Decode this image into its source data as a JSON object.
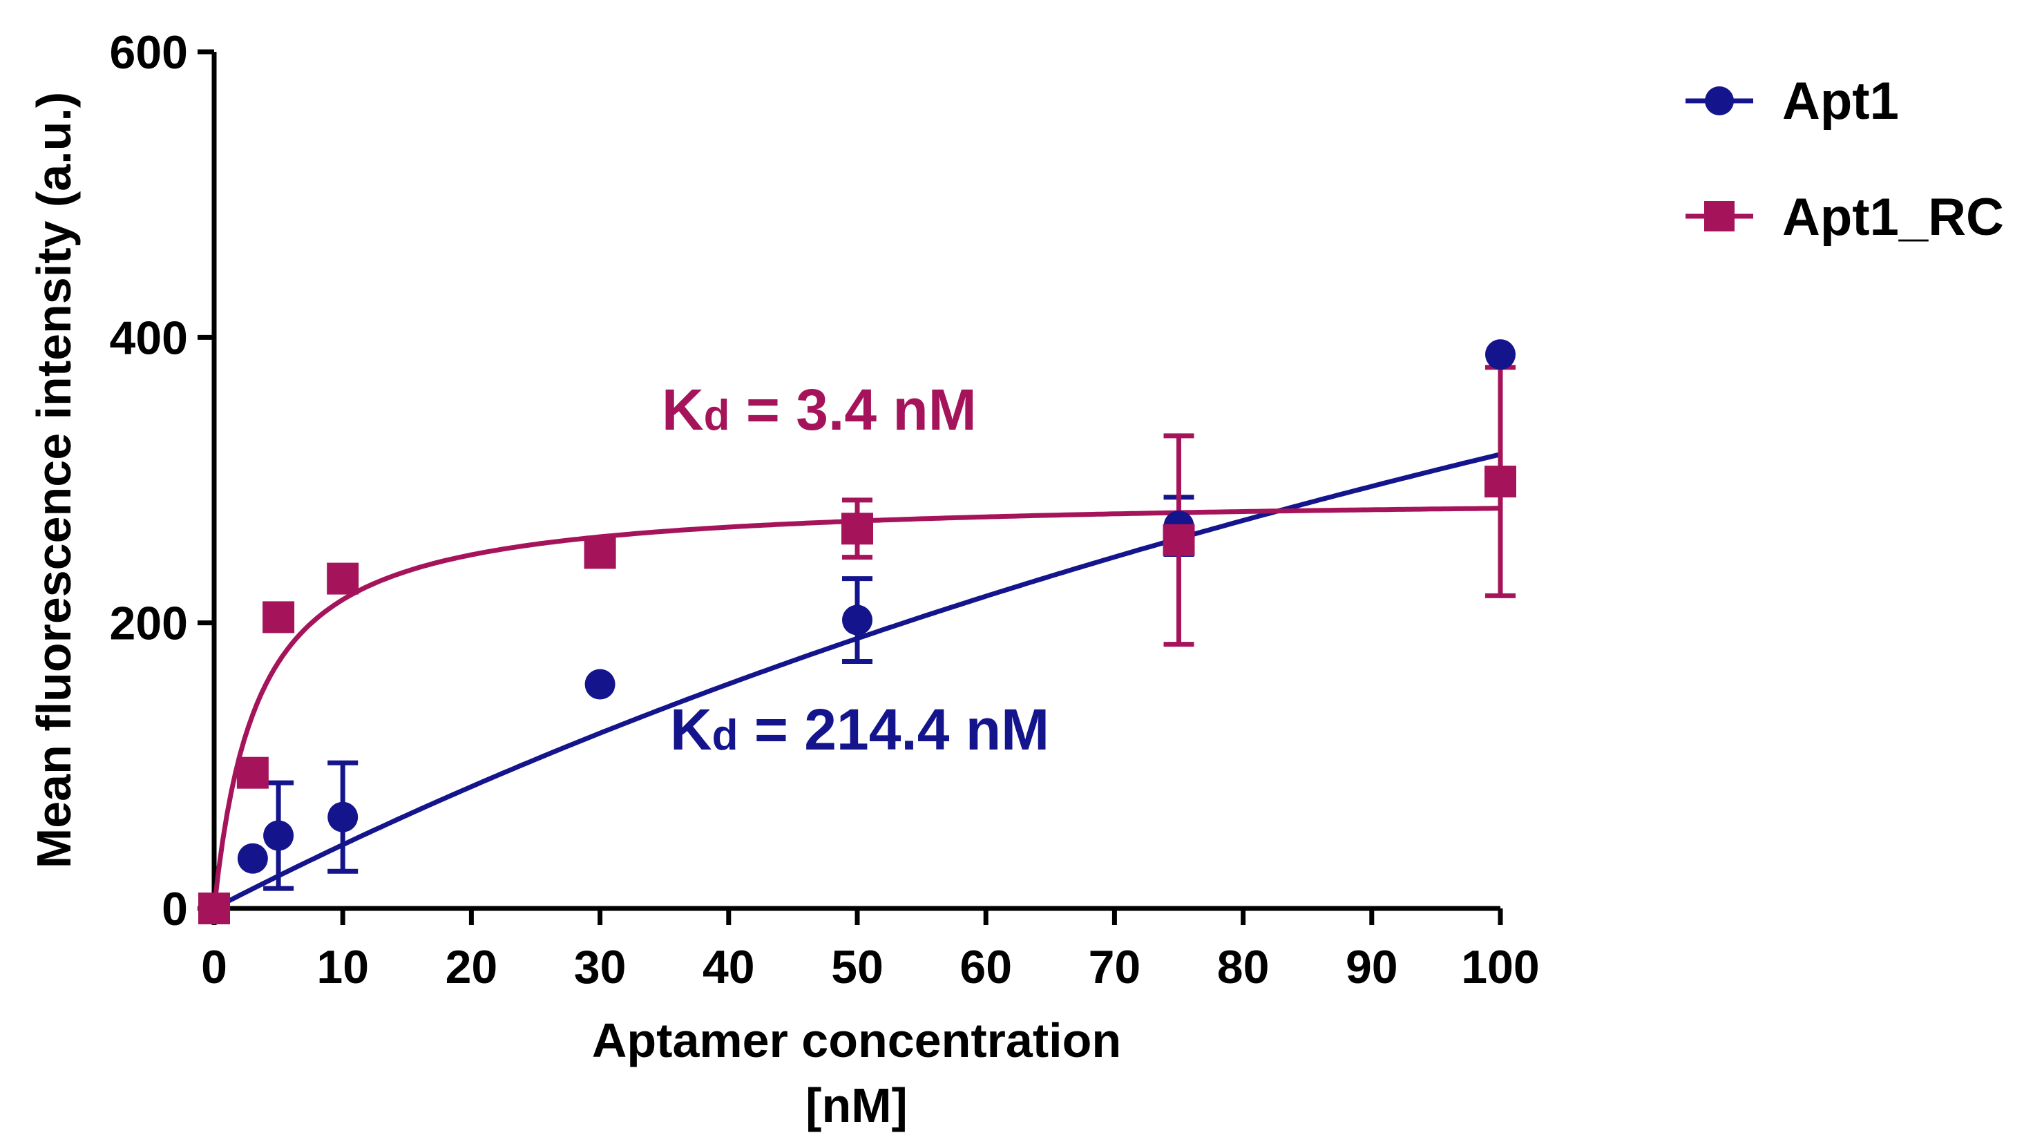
{
  "chart_data": {
    "type": "scatter",
    "title": "",
    "xlabel_line1": "Aptamer concentration",
    "xlabel_line2": "[nM]",
    "ylabel": "Mean fluorescence intensity (a.u.)",
    "xlim": [
      0,
      100
    ],
    "ylim": [
      0,
      600
    ],
    "x_ticks": [
      0,
      10,
      20,
      30,
      40,
      50,
      60,
      70,
      80,
      90,
      100
    ],
    "y_ticks": [
      0,
      200,
      400,
      600
    ],
    "grid": false,
    "legend_position": "top-right",
    "series": [
      {
        "name": "Apt1",
        "color": "#14148c",
        "marker": "circle",
        "x": [
          0,
          3,
          5,
          10,
          30,
          50,
          75,
          100
        ],
        "y": [
          0,
          35,
          51,
          64,
          157,
          202,
          268,
          388
        ],
        "err": [
          0,
          0,
          37,
          38,
          0,
          29,
          20,
          0
        ],
        "fit": {
          "model": "one-site",
          "bmax": 1000,
          "kd": 214.4
        }
      },
      {
        "name": "Apt1_RC",
        "color": "#a5145a",
        "marker": "square",
        "x": [
          0,
          3,
          5,
          10,
          30,
          50,
          75,
          100
        ],
        "y": [
          0,
          95,
          204,
          231,
          249,
          266,
          258,
          299
        ],
        "err": [
          0,
          0,
          0,
          0,
          0,
          20,
          73,
          80
        ],
        "fit": {
          "model": "one-site",
          "bmax": 289.8,
          "kd": 3.4
        }
      }
    ],
    "annotations": [
      {
        "series": "Apt1_RC",
        "main": "K",
        "sub": "d",
        "rest": " = 3.4 nM",
        "color": "#a5145a"
      },
      {
        "series": "Apt1",
        "main": "K",
        "sub": "d",
        "rest": " = 214.4 nM",
        "color": "#14148c"
      }
    ]
  }
}
